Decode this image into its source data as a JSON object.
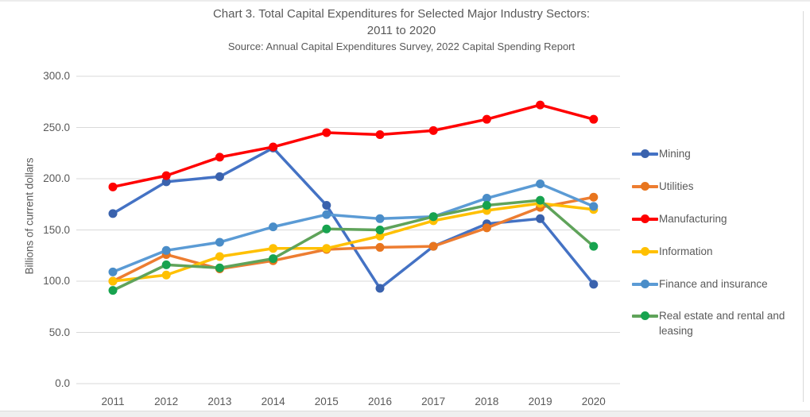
{
  "page": {
    "background": "#FFFFFF",
    "text_color": "#595959",
    "gridline_color": "#D9D9D9"
  },
  "chart_data": {
    "type": "line",
    "title_line1": "Chart 3. Total Capital Expenditures for Selected Major Industry Sectors:",
    "title_line2": "2011 to 2020",
    "source": "Source: Annual Capital Expenditures Survey, 2022 Capital Spending Report",
    "ylabel": "Billions of current dollars",
    "xlabel": "",
    "categories": [
      "2011",
      "2012",
      "2013",
      "2014",
      "2015",
      "2016",
      "2017",
      "2018",
      "2019",
      "2020"
    ],
    "ylim": [
      0,
      300
    ],
    "ytick_step": 50,
    "ytick_labels_top_to_bottom": [
      "300.0",
      "250.0",
      "200.0",
      "150.0",
      "100.0",
      "50.0",
      "0.0"
    ],
    "grid": true,
    "legend_position": "right",
    "units": "billions of current dollars",
    "series": [
      {
        "name": "Mining",
        "line_color": "#4472C4",
        "marker_color": "#3A62AD",
        "values": [
          166,
          197,
          202,
          230,
          174,
          93,
          134,
          156,
          161,
          97
        ]
      },
      {
        "name": "Utilities",
        "line_color": "#ED7D31",
        "marker_color": "#E8751E",
        "values": [
          100,
          126,
          112,
          120,
          131,
          133,
          134,
          152,
          172,
          182
        ]
      },
      {
        "name": "Manufacturing",
        "line_color": "#FF0000",
        "marker_color": "#FF0000",
        "values": [
          192,
          203,
          221,
          231,
          245,
          243,
          247,
          258,
          272,
          258
        ]
      },
      {
        "name": "Information",
        "line_color": "#FFC000",
        "marker_color": "#FFC000",
        "values": [
          100,
          106,
          124,
          132,
          132,
          144,
          159,
          169,
          176,
          170
        ]
      },
      {
        "name": "Finance and insurance",
        "line_color": "#5B9BD5",
        "marker_color": "#4A8DC8",
        "values": [
          109,
          130,
          138,
          153,
          165,
          161,
          163,
          181,
          195,
          173
        ]
      },
      {
        "name": "Real estate and rental and leasing",
        "line_color": "#5FA35A",
        "marker_color": "#17A34F",
        "values": [
          91,
          116,
          113,
          122,
          151,
          150,
          163,
          174,
          179,
          134
        ]
      }
    ]
  }
}
